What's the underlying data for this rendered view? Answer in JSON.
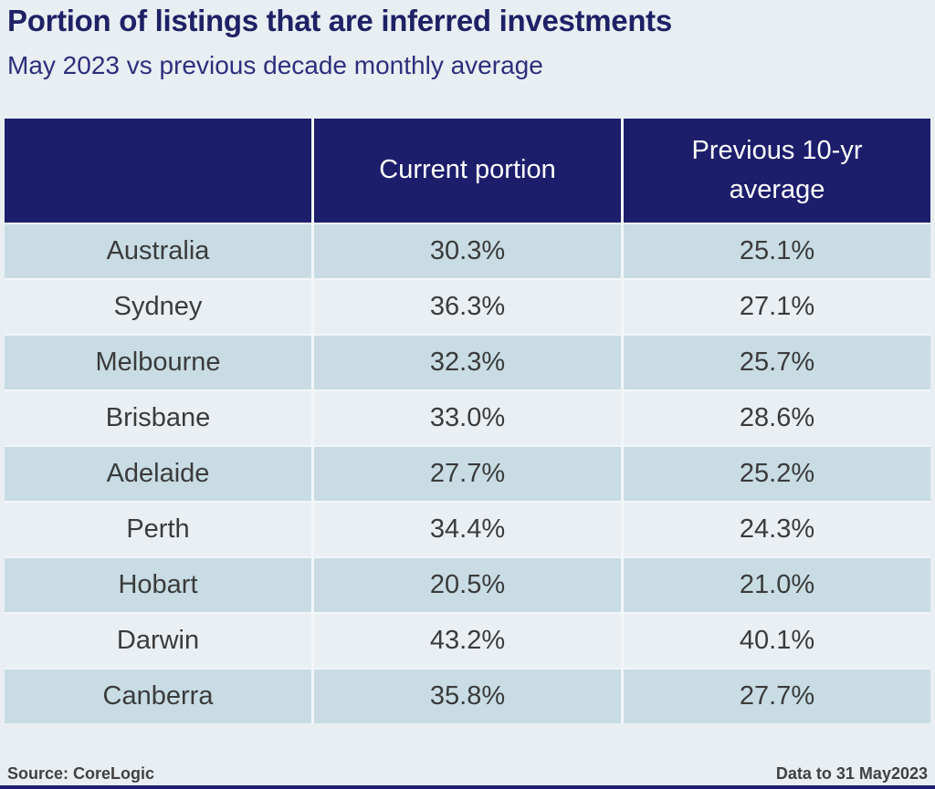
{
  "header": {
    "title": "Portion of listings that are inferred investments",
    "subtitle": "May 2023 vs previous decade monthly average"
  },
  "table": {
    "columns": [
      "",
      "Current portion",
      "Previous 10-yr average"
    ],
    "rows": [
      {
        "region": "Australia",
        "current": "30.3%",
        "previous": "25.1%"
      },
      {
        "region": "Sydney",
        "current": "36.3%",
        "previous": "27.1%"
      },
      {
        "region": "Melbourne",
        "current": "32.3%",
        "previous": "25.7%"
      },
      {
        "region": "Brisbane",
        "current": "33.0%",
        "previous": "28.6%"
      },
      {
        "region": "Adelaide",
        "current": "27.7%",
        "previous": "25.2%"
      },
      {
        "region": "Perth",
        "current": "34.4%",
        "previous": "24.3%"
      },
      {
        "region": "Hobart",
        "current": "20.5%",
        "previous": "21.0%"
      },
      {
        "region": "Darwin",
        "current": "43.2%",
        "previous": "40.1%"
      },
      {
        "region": "Canberra",
        "current": "35.8%",
        "previous": "27.7%"
      }
    ]
  },
  "footer": {
    "source": "Source: CoreLogic",
    "data_note": "Data to 31 May2023"
  },
  "chart_data": {
    "type": "table",
    "title": "Portion of listings that are inferred investments",
    "subtitle": "May 2023 vs previous decade monthly average",
    "columns": [
      "",
      "Current portion",
      "Previous 10-yr average"
    ],
    "categories": [
      "Australia",
      "Sydney",
      "Melbourne",
      "Brisbane",
      "Adelaide",
      "Perth",
      "Hobart",
      "Darwin",
      "Canberra"
    ],
    "series": [
      {
        "name": "Current portion",
        "values": [
          30.3,
          36.3,
          32.3,
          33.0,
          27.7,
          34.4,
          20.5,
          43.2,
          35.8
        ]
      },
      {
        "name": "Previous 10-yr average",
        "values": [
          25.1,
          27.1,
          25.7,
          28.6,
          25.2,
          24.3,
          21.0,
          40.1,
          27.7
        ]
      }
    ],
    "unit": "%",
    "source": "Source: CoreLogic",
    "note": "Data to 31 May2023"
  },
  "theme": {
    "page_bg": "#e9eef3",
    "header_bg": "#1c1e6c",
    "header_text": "#ffffff",
    "row_blue": "#c9dce3",
    "row_light": "#eaeff4",
    "cell_text": "#3b3b3b",
    "title_color": "#1e2165",
    "subtitle_color": "#2d2f7c",
    "footer_text": "#414141",
    "separator": "#f2f6f9"
  }
}
